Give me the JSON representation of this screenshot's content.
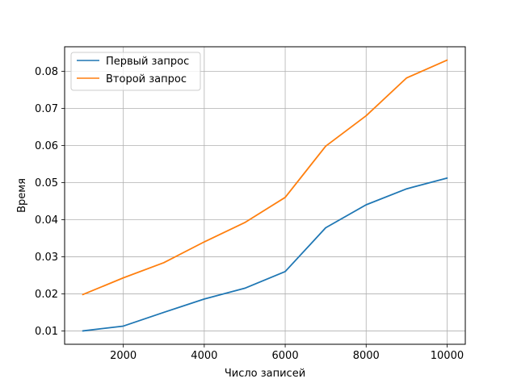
{
  "chart_data": {
    "type": "line",
    "title": "",
    "xlabel": "Число записей",
    "ylabel": "Время",
    "xlim": [
      550,
      10450
    ],
    "ylim": [
      0.0064,
      0.0866
    ],
    "xticks": [
      2000,
      4000,
      6000,
      8000,
      10000
    ],
    "yticks": [
      0.01,
      0.02,
      0.03,
      0.04,
      0.05,
      0.06,
      0.07,
      0.08
    ],
    "grid": true,
    "legend_position": "top-left",
    "x": [
      1000,
      2000,
      3000,
      4000,
      5000,
      6000,
      7000,
      8000,
      9000,
      10000
    ],
    "series": [
      {
        "name": "Первый запрос",
        "color": "#1f77b4",
        "values": [
          0.01,
          0.0113,
          0.015,
          0.0186,
          0.0215,
          0.026,
          0.0378,
          0.044,
          0.0483,
          0.0512
        ]
      },
      {
        "name": "Второй запрос",
        "color": "#ff7f0e",
        "values": [
          0.0198,
          0.0243,
          0.0284,
          0.034,
          0.0392,
          0.046,
          0.0598,
          0.068,
          0.0782,
          0.083
        ]
      }
    ]
  }
}
